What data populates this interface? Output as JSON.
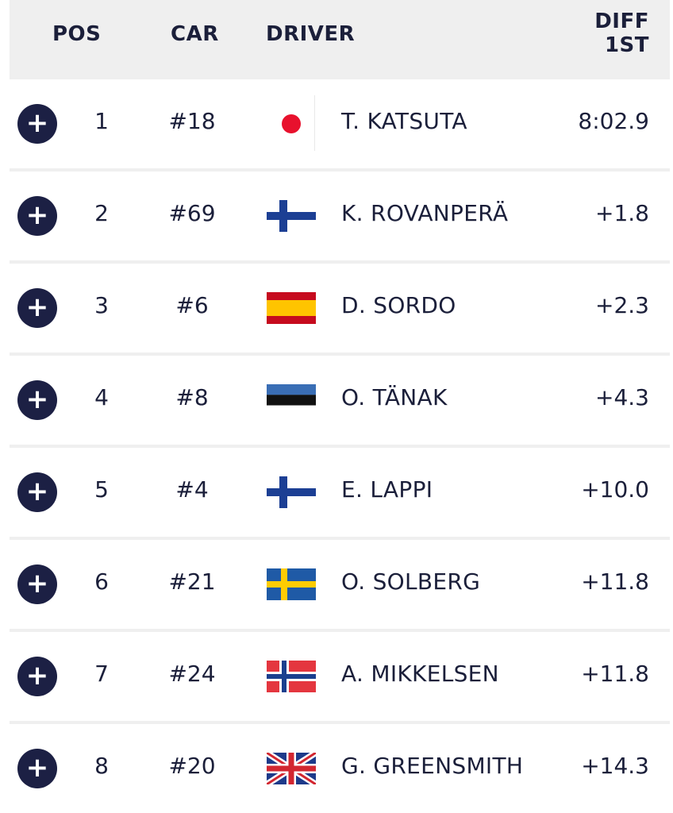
{
  "header": {
    "pos": "POS",
    "car": "CAR",
    "driver": "DRIVER",
    "diff_line1": "DIFF",
    "diff_line2": "1ST"
  },
  "rows": [
    {
      "pos": "1",
      "car": "#18",
      "flag": "japan-flag",
      "driver": "T. KATSUTA",
      "diff": "8:02.9"
    },
    {
      "pos": "2",
      "car": "#69",
      "flag": "finland-flag",
      "driver": "K. ROVANPERÄ",
      "diff": "+1.8"
    },
    {
      "pos": "3",
      "car": "#6",
      "flag": "spain-flag",
      "driver": "D. SORDO",
      "diff": "+2.3"
    },
    {
      "pos": "4",
      "car": "#8",
      "flag": "estonia-flag",
      "driver": "O. TÄNAK",
      "diff": "+4.3"
    },
    {
      "pos": "5",
      "car": "#4",
      "flag": "finland-flag",
      "driver": "E. LAPPI",
      "diff": "+10.0"
    },
    {
      "pos": "6",
      "car": "#21",
      "flag": "sweden-flag",
      "driver": "O. SOLBERG",
      "diff": "+11.8"
    },
    {
      "pos": "7",
      "car": "#24",
      "flag": "norway-flag",
      "driver": "A. MIKKELSEN",
      "diff": "+11.8"
    },
    {
      "pos": "8",
      "car": "#20",
      "flag": "uk-flag",
      "driver": "G. GREENSMITH",
      "diff": "+14.3"
    }
  ],
  "icons": {
    "expand": "plus-icon"
  },
  "colors": {
    "text": "#1b1f3a",
    "header_bg": "#efefef",
    "button": "#1c2044"
  }
}
